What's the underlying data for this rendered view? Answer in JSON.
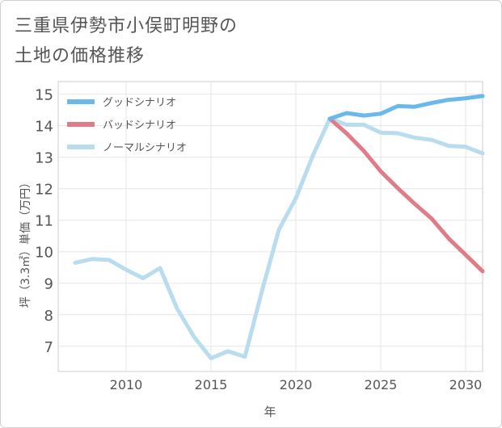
{
  "title_lines": [
    "三重県伊勢市小俣町明野の",
    "土地の価格推移"
  ],
  "chart_data": {
    "type": "line",
    "title": "三重県伊勢市小俣町明野の土地の価格推移",
    "xlabel": "年",
    "ylabel": "坪（3.3㎡）単価（万円）",
    "xlim": [
      2006,
      2031
    ],
    "ylim": [
      6.2,
      15.4
    ],
    "xticks": [
      2010,
      2015,
      2020,
      2025,
      2030
    ],
    "yticks": [
      7,
      8,
      9,
      10,
      11,
      12,
      13,
      14,
      15
    ],
    "grid": true,
    "legend_position": "top-left",
    "series": [
      {
        "name": "グッドシナリオ",
        "color": "#6bb8ec",
        "x": [
          2022,
          2023,
          2024,
          2025,
          2026,
          2027,
          2028,
          2029,
          2030,
          2031
        ],
        "y": [
          14.22,
          14.4,
          14.32,
          14.38,
          14.62,
          14.6,
          14.72,
          14.82,
          14.87,
          14.94
        ]
      },
      {
        "name": "バッドシナリオ",
        "color": "#e07b87",
        "x": [
          2022,
          2023,
          2024,
          2025,
          2026,
          2027,
          2028,
          2029,
          2030,
          2031
        ],
        "y": [
          14.22,
          13.75,
          13.2,
          12.55,
          12.02,
          11.52,
          11.05,
          10.42,
          9.9,
          9.38
        ]
      },
      {
        "name": "ノーマルシナリオ",
        "color": "#b9dcee",
        "x": [
          2007,
          2008,
          2009,
          2010,
          2011,
          2012,
          2013,
          2014,
          2015,
          2016,
          2017,
          2018,
          2019,
          2020,
          2021,
          2022,
          2023,
          2024,
          2025,
          2026,
          2027,
          2028,
          2029,
          2030,
          2031
        ],
        "y": [
          9.65,
          9.77,
          9.74,
          9.43,
          9.16,
          9.48,
          8.2,
          7.3,
          6.62,
          6.84,
          6.67,
          8.75,
          10.7,
          11.7,
          13.05,
          14.22,
          14.03,
          14.03,
          13.78,
          13.76,
          13.62,
          13.55,
          13.36,
          13.33,
          13.12
        ]
      }
    ]
  }
}
